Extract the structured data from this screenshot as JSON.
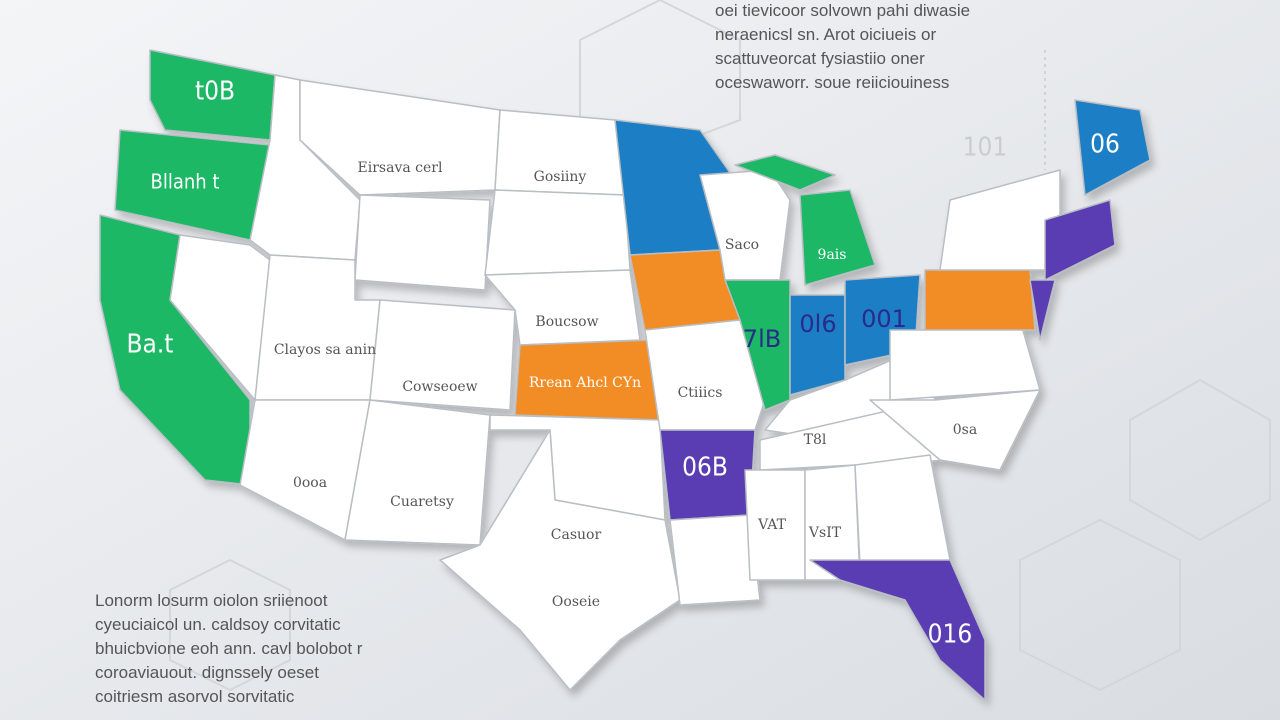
{
  "header_text": [
    "oei tievicoor solvown pahi diwasie",
    "neraenicsl sn. Arot oiciueis or",
    "scattuveorcat fysiastiio oner",
    "oceswaworr. soue reiiciouiness"
  ],
  "footer_text": [
    "Lonorm losurm oiolon sriienoot",
    "cyeuciaicol un. caldsoy corvitatic",
    "bhuicbvione eoh ann. cavl bolobot r",
    "coroaviauout. dignssely oeset",
    "coitriesm asorvol sorvitatic"
  ],
  "regions": [
    "t0B",
    "Bllanh t",
    "Ba.t",
    "Eirsava cerl",
    "Gosiiny",
    "Boucsow",
    "Clayos sa anin",
    "Cowseoew",
    "Rrean Ahcl CYn",
    "0ooa",
    "Cuaretsy",
    "Casuor",
    "Ooseie",
    "Ctiiics",
    "06B",
    "7lB",
    "0l6",
    "001",
    "Saco",
    "9ais",
    "T8l",
    "VAT",
    "VsIT",
    "0sa",
    "06",
    "101",
    "016"
  ]
}
